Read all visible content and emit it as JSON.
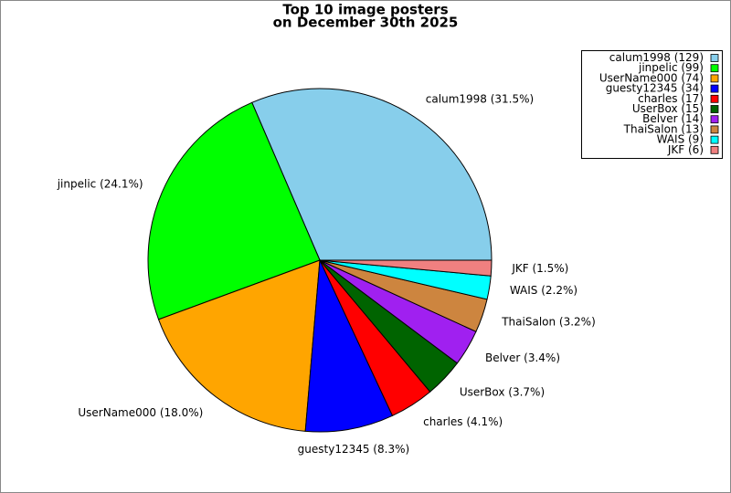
{
  "chart_data": {
    "type": "pie",
    "title": [
      "Top 10 image posters",
      "on December 30th 2025"
    ],
    "values": [
      129,
      99,
      74,
      34,
      17,
      15,
      14,
      13,
      9,
      6
    ],
    "value_labels": [
      "calum1998 (31.5%)",
      "jinpelic (24.1%)",
      "UserName000 (18.0%)",
      "guesty12345 (8.3%)",
      "charles (4.1%)",
      "UserBox (3.7%)",
      "Belver (3.4%)",
      "ThaiSalon (3.2%)",
      "WAIS (2.2%)",
      "JKF (1.5%)"
    ],
    "legend_labels": [
      "calum1998 (129)",
      "jinpelic (99)",
      "UserName000 (74)",
      "guesty12345 (34)",
      "charles (17)",
      "UserBox (15)",
      "Belver (14)",
      "ThaiSalon (13)",
      "WAIS (9)",
      "JKF (6)"
    ],
    "colors": [
      "#87ceeb",
      "#00ff00",
      "#ffa500",
      "#0000ff",
      "#ff0000",
      "#006400",
      "#a020f0",
      "#cd853f",
      "#00ffff",
      "#f08080"
    ],
    "legend_position": "upper right"
  }
}
